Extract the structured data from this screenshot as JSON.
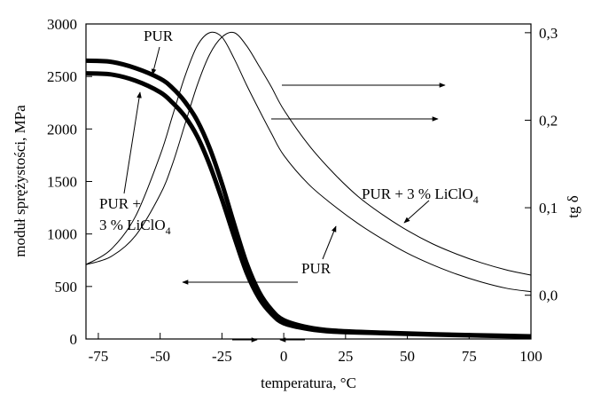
{
  "chart_data": {
    "type": "line",
    "xlabel": "temperatura, °C",
    "ylabel_left": "moduł sprężystości, MPa",
    "ylabel_right": "tg δ",
    "xlim": [
      -80,
      100
    ],
    "ylim_left": [
      0,
      3000
    ],
    "ylim_right": [
      -0.05,
      0.31
    ],
    "x_ticks": [
      -75,
      -50,
      -25,
      0,
      25,
      50,
      75,
      100
    ],
    "x_tick_labels": [
      "-75",
      "-50",
      "-25",
      "0",
      "25",
      "50",
      "75",
      "100"
    ],
    "y_left_ticks": [
      0,
      500,
      1000,
      1500,
      2000,
      2500,
      3000
    ],
    "y_left_tick_labels": [
      "0",
      "500",
      "1000",
      "1500",
      "2000",
      "2500",
      "3000"
    ],
    "y_right_ticks": [
      0.0,
      0.1,
      0.2,
      0.3
    ],
    "y_right_tick_labels": [
      "0,0",
      "0,1",
      "0,2",
      "0,3"
    ],
    "grid": false,
    "series": [
      {
        "key": "modulus_pur",
        "axis": "left",
        "style": "thick",
        "x": [
          -80,
          -70,
          -60,
          -50,
          -45,
          -40,
          -35,
          -30,
          -25,
          -20,
          -15,
          -10,
          -5,
          0,
          10,
          20,
          40,
          60,
          80,
          100
        ],
        "y": [
          2650,
          2640,
          2580,
          2480,
          2390,
          2260,
          2080,
          1820,
          1480,
          1090,
          720,
          450,
          280,
          180,
          110,
          80,
          60,
          45,
          35,
          25
        ]
      },
      {
        "key": "modulus_pur_licl",
        "axis": "left",
        "style": "thick",
        "x": [
          -80,
          -70,
          -60,
          -50,
          -45,
          -40,
          -35,
          -30,
          -25,
          -20,
          -15,
          -10,
          -5,
          0,
          10,
          20,
          40,
          60,
          80,
          100
        ],
        "y": [
          2530,
          2520,
          2460,
          2350,
          2250,
          2120,
          1930,
          1660,
          1330,
          970,
          630,
          390,
          240,
          150,
          95,
          70,
          55,
          42,
          32,
          22
        ]
      },
      {
        "key": "tand_pur",
        "axis": "right",
        "style": "thin",
        "x": [
          -80,
          -70,
          -60,
          -50,
          -45,
          -40,
          -35,
          -30,
          -25,
          -20,
          -15,
          -10,
          -5,
          0,
          10,
          20,
          30,
          40,
          50,
          60,
          70,
          80,
          90,
          100
        ],
        "y": [
          0.035,
          0.052,
          0.09,
          0.16,
          0.205,
          0.25,
          0.285,
          0.3,
          0.295,
          0.27,
          0.24,
          0.212,
          0.185,
          0.16,
          0.127,
          0.103,
          0.082,
          0.064,
          0.048,
          0.035,
          0.024,
          0.015,
          0.008,
          0.004
        ]
      },
      {
        "key": "tand_pur_licl",
        "axis": "right",
        "style": "thin",
        "x": [
          -80,
          -70,
          -60,
          -50,
          -45,
          -40,
          -35,
          -30,
          -25,
          -20,
          -15,
          -10,
          -5,
          0,
          10,
          20,
          30,
          40,
          50,
          60,
          70,
          80,
          90,
          100
        ],
        "y": [
          0.035,
          0.044,
          0.068,
          0.115,
          0.15,
          0.195,
          0.24,
          0.275,
          0.295,
          0.3,
          0.285,
          0.262,
          0.238,
          0.212,
          0.172,
          0.14,
          0.113,
          0.092,
          0.074,
          0.059,
          0.047,
          0.037,
          0.029,
          0.023
        ]
      }
    ],
    "annotations": {
      "pur_top": "PUR",
      "pur_licl_left_1": "PUR +",
      "pur_licl_left_2": "3 % LiClO",
      "pur_bottom": "PUR",
      "pur_licl_right": "PUR + 3 % LiClO",
      "subscript": "4"
    }
  }
}
